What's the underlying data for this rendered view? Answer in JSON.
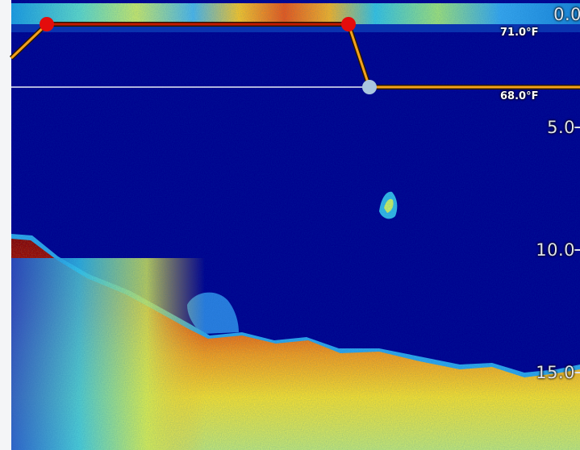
{
  "sonar": {
    "depth_scale": [
      {
        "label": "0.0",
        "depth": 0
      },
      {
        "label": "5.0",
        "depth": 5
      },
      {
        "label": "10.0",
        "depth": 10
      },
      {
        "label": "15.0",
        "depth": 15
      }
    ],
    "temperature_markers": [
      {
        "label": "71.0°F"
      },
      {
        "label": "68.0°F"
      }
    ],
    "colors": {
      "water": "#00008e",
      "bottom_strong": "#8a0000",
      "bottom_mid": "#d43a00",
      "bottom_weak": "#f5e22a",
      "temp_line": "#f2a11c",
      "marker_red": "#e40c0c",
      "marker_active": "#a9c6e0"
    }
  }
}
